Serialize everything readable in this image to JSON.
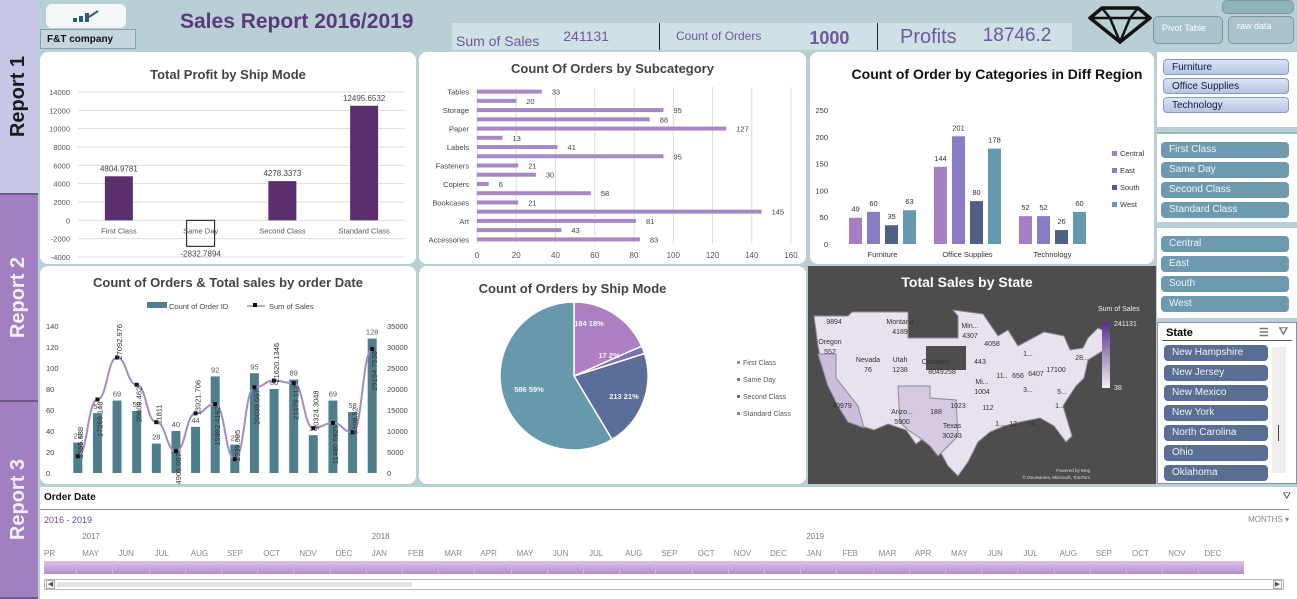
{
  "side_tabs": [
    {
      "label": "Report 1",
      "active": true
    },
    {
      "label": "Report 2",
      "active": false
    },
    {
      "label": "Report 3",
      "active": false
    }
  ],
  "header": {
    "logo_icon": "bar-growth-logo",
    "company": "F&T company",
    "title": "Sales Report 2016/2019",
    "kpis": {
      "sum_of_sales_label": "Sum of Sales",
      "sum_of_sales_value": "241131",
      "count_of_orders_label": "Count of Orders",
      "count_of_orders_value": "1000",
      "profits_label": "Profits",
      "profits_value": "18746.2"
    },
    "diamond_icon": "diamond-icon",
    "buttons": {
      "pivot": "Pivot Table",
      "raw": "raw data"
    }
  },
  "slicers": {
    "category": [
      "Furniture",
      "Office Supplies",
      "Technology"
    ],
    "ship_mode": [
      "First Class",
      "Same Day",
      "Second Class",
      "Standard Class"
    ],
    "region": [
      "Central",
      "East",
      "South",
      "West"
    ],
    "state": {
      "title": "State",
      "items": [
        "New Hampshire",
        "New Jersey",
        "New Mexico",
        "New York",
        "North Carolina",
        "Ohio",
        "Oklahoma"
      ]
    }
  },
  "chart_data": [
    {
      "id": "profit_by_ship_mode",
      "type": "bar",
      "title": "Total Profit by Ship Mode",
      "categories": [
        "First Class",
        "Same Day",
        "Second Class",
        "Standard Class"
      ],
      "values": [
        4804.9781,
        -2832.7894,
        4278.3373,
        12495.6532
      ],
      "value_labels": [
        "4804.9781",
        "-2832.7894",
        "4278.3373",
        "12495.6532"
      ],
      "ylim": [
        -4000,
        14000
      ],
      "yticks": [
        -4000,
        -2000,
        0,
        2000,
        4000,
        6000,
        8000,
        10000,
        12000,
        14000
      ],
      "color": "#5b2f6e",
      "grid": true
    },
    {
      "id": "orders_by_subcategory",
      "type": "bar",
      "orientation": "horizontal",
      "title": "Count Of Orders by Subcategory",
      "categories": [
        "Accessories",
        "",
        "Art",
        "",
        "Bookcases",
        "",
        "Copiers",
        "",
        "Fasteners",
        "",
        "Labels",
        "",
        "Paper",
        "",
        "Storage",
        "",
        "Tables"
      ],
      "values": [
        83,
        43,
        81,
        145,
        21,
        58,
        6,
        30,
        21,
        95,
        41,
        13,
        127,
        88,
        95,
        20,
        33
      ],
      "xlim": [
        0,
        160
      ],
      "xticks": [
        0,
        20,
        40,
        60,
        80,
        100,
        120,
        140,
        160
      ],
      "color": "#a888c4",
      "grid": true
    },
    {
      "id": "orders_by_category_region",
      "type": "bar",
      "title": "Count of Order by Categories in Diff Region",
      "categories": [
        "Furniture",
        "Office Supplies",
        "Technology"
      ],
      "series": [
        {
          "name": "Central",
          "values": [
            49,
            144,
            52
          ],
          "color": "#a57fc1"
        },
        {
          "name": "East",
          "values": [
            60,
            201,
            52
          ],
          "color": "#8a7cc4"
        },
        {
          "name": "South",
          "values": [
            35,
            80,
            26
          ],
          "color": "#4f5f85"
        },
        {
          "name": "West",
          "values": [
            63,
            178,
            60
          ],
          "color": "#6599ad"
        }
      ],
      "ylim": [
        0,
        250
      ],
      "yticks": [
        0,
        50,
        100,
        150,
        200,
        250
      ],
      "legend": "right"
    },
    {
      "id": "orders_sales_by_date",
      "type": "bar+line",
      "title": "Count of Orders & Total sales by order Date",
      "legend": [
        "Count of Order ID",
        "Sum of Sales"
      ],
      "legend_position": "top",
      "bar_values": [
        29,
        57,
        69,
        59,
        28,
        40,
        44,
        92,
        27,
        95,
        80,
        89,
        36,
        69,
        58,
        128
      ],
      "line_values": [
        3555.688,
        17269.143,
        27092.976,
        20609.462,
        11811,
        4905.007,
        13921.706,
        15882.4162,
        2939.905,
        20038.057,
        21620.1346,
        21079.112,
        10324.3048,
        11480.5825,
        9406.52,
        29194.7538
      ],
      "line_labels": [
        "3555.688",
        "17269.143",
        "27092.976",
        "20609.462",
        "11811",
        "4905.007",
        "13921.706",
        "15882.4162",
        "2939.905",
        "20038.057",
        "21620.1346",
        "21079.112",
        "10324.3048",
        "11480.5825",
        "9406.52",
        "29194.7538"
      ],
      "line_points": [
        4000,
        17500,
        27500,
        21000,
        12100,
        5200,
        14200,
        16400,
        3300,
        20400,
        22000,
        21400,
        10700,
        11900,
        9700,
        29500
      ],
      "y1lim": [
        0,
        140
      ],
      "y1ticks": [
        0,
        20,
        40,
        60,
        80,
        100,
        120,
        140
      ],
      "y2lim": [
        0,
        35000
      ],
      "y2ticks": [
        0,
        5000,
        10000,
        15000,
        20000,
        25000,
        30000,
        35000
      ],
      "bar_color": "#4f7f8b",
      "line_color": "#a78bc5"
    },
    {
      "id": "orders_by_ship_mode",
      "type": "pie",
      "title": "Count of Orders by Ship Mode",
      "categories": [
        "First Class",
        "Same Day",
        "Second Class",
        "Standard Class"
      ],
      "values": [
        184,
        17,
        213,
        586
      ],
      "labels": [
        "184 18%",
        "17 2%",
        "213 21%",
        "586 59%"
      ],
      "colors": [
        "#ad80c4",
        "#7b71b8",
        "#5b6d99",
        "#6799ad"
      ],
      "legend": "right"
    }
  ],
  "map": {
    "title": "Total Sales by State",
    "legend_title": "Sum of Sales",
    "legend_max": "241131",
    "legend_min": "38",
    "labels": [
      {
        "name": "",
        "value": "9894"
      },
      {
        "name": "Montana",
        "value": "4189"
      },
      {
        "name": "Oregon",
        "value": "552"
      },
      {
        "name": "Nevada",
        "value": "76"
      },
      {
        "name": "Utah",
        "value": "1238"
      },
      {
        "name": "Colorado",
        "value": "8049"
      },
      {
        "name": "",
        "value": "40979"
      },
      {
        "name": "Arizo...",
        "value": "5900"
      },
      {
        "name": "",
        "value": "188"
      },
      {
        "name": "Texas",
        "value": "30243"
      },
      {
        "name": "",
        "value": "258"
      },
      {
        "name": "",
        "value": "1023"
      },
      {
        "name": "Min...",
        "value": "4307"
      },
      {
        "name": "",
        "value": "4058"
      },
      {
        "name": "",
        "value": "443"
      },
      {
        "name": "Mi...",
        "value": "1004"
      },
      {
        "name": "",
        "value": "112"
      },
      {
        "name": "",
        "value": "11.."
      },
      {
        "name": "",
        "value": "656"
      },
      {
        "name": "",
        "value": "6407"
      },
      {
        "name": "",
        "value": "17100"
      },
      {
        "name": "",
        "value": "1..."
      },
      {
        "name": "",
        "value": "28..."
      },
      {
        "name": "",
        "value": "3..."
      },
      {
        "name": "",
        "value": "5..."
      },
      {
        "name": "",
        "value": "1..."
      },
      {
        "name": "",
        "value": "1..."
      },
      {
        "name": "",
        "value": "12..."
      },
      {
        "name": "",
        "value": "74..."
      }
    ],
    "attribution_1": "Powered by Bing",
    "attribution_2": "© GeoNames, Microsoft, TomTom"
  },
  "timeline": {
    "title": "Order Date",
    "range": "2016 - 2019",
    "period_selector": "MONTHS ▾",
    "years": [
      {
        "label": "2017",
        "month_index": 1
      },
      {
        "label": "2018",
        "month_index": 9
      },
      {
        "label": "2019",
        "month_index": 21
      }
    ],
    "months": [
      "PR",
      "MAY",
      "JUN",
      "JUL",
      "AUG",
      "SEP",
      "OCT",
      "NOV",
      "DEC",
      "JAN",
      "FEB",
      "MAR",
      "APR",
      "MAY",
      "JUN",
      "JUL",
      "AUG",
      "SEP",
      "OCT",
      "NOV",
      "DEC",
      "JAN",
      "FEB",
      "MAR",
      "APR",
      "MAY",
      "JUN",
      "JUL",
      "AUG",
      "SEP",
      "OCT",
      "NOV",
      "DEC"
    ]
  }
}
